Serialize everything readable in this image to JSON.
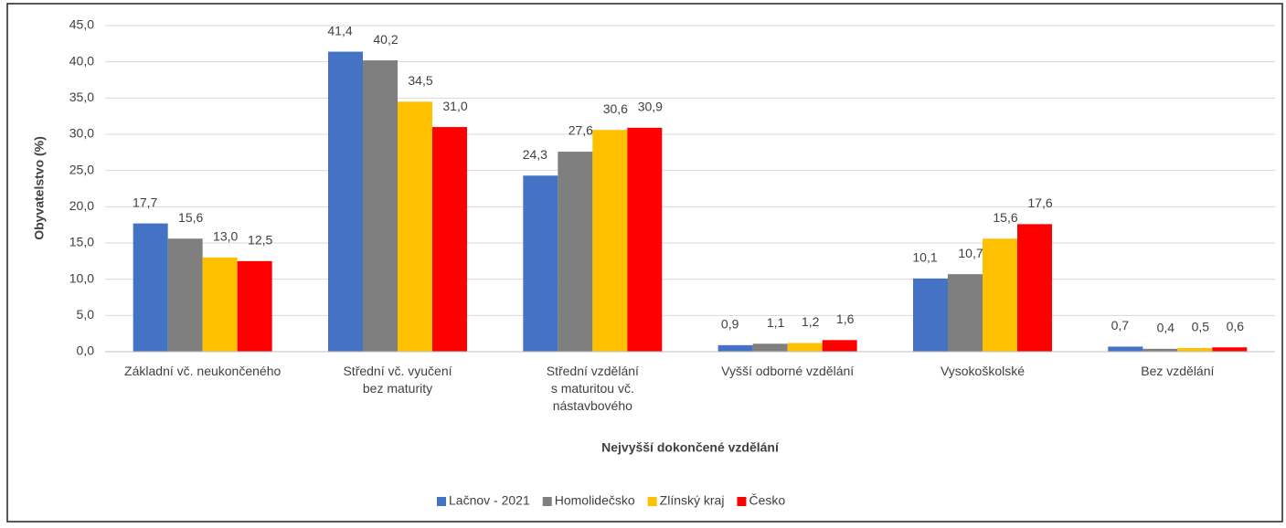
{
  "chart_data": {
    "type": "bar",
    "y_label": "Obyvatelstvo (%)",
    "x_label": "Nejvyšší dokončené vzdělání",
    "categories": [
      "Základní vč. neukončeného",
      "Střední vč. vyučení\nbez maturity",
      "Střední vzdělání\ns maturitou vč.\nnástavbového",
      "Vyšší odborné vzdělání",
      "Vysokoškolské",
      "Bez vzdělání"
    ],
    "series": [
      {
        "name": "Lačnov - 2021",
        "color": "#4472c4",
        "values": [
          17.7,
          41.4,
          24.3,
          0.9,
          10.1,
          0.7
        ],
        "value_labels": [
          "17,7",
          "41,4",
          "24,3",
          "0,9",
          "10,1",
          "0,7"
        ]
      },
      {
        "name": "Homolidečsko",
        "color": "#7f7f7f",
        "values": [
          15.6,
          40.2,
          27.6,
          1.1,
          10.7,
          0.4
        ],
        "value_labels": [
          "15,6",
          "40,2",
          "27,6",
          "1,1",
          "10,7",
          "0,4"
        ]
      },
      {
        "name": "Zlínský kraj",
        "color": "#ffc000",
        "values": [
          13.0,
          34.5,
          30.6,
          1.2,
          15.6,
          0.5
        ],
        "value_labels": [
          "13,0",
          "34,5",
          "30,6",
          "1,2",
          "15,6",
          "0,5"
        ]
      },
      {
        "name": "Česko",
        "color": "#ff0000",
        "values": [
          12.5,
          31.0,
          30.9,
          1.6,
          17.6,
          0.6
        ],
        "value_labels": [
          "12,5",
          "31,0",
          "30,9",
          "1,6",
          "17,6",
          "0,6"
        ]
      }
    ],
    "ylim": [
      0,
      45
    ],
    "yticks": [
      {
        "value": 0,
        "label": "0,0"
      },
      {
        "value": 5,
        "label": "5,0"
      },
      {
        "value": 10,
        "label": "10,0"
      },
      {
        "value": 15,
        "label": "15,0"
      },
      {
        "value": 20,
        "label": "20,0"
      },
      {
        "value": 25,
        "label": "25,0"
      },
      {
        "value": 30,
        "label": "30,0"
      },
      {
        "value": 35,
        "label": "35,0"
      },
      {
        "value": 40,
        "label": "40,0"
      },
      {
        "value": 45,
        "label": "45,0"
      }
    ],
    "grid": true,
    "legend": "bottom"
  }
}
